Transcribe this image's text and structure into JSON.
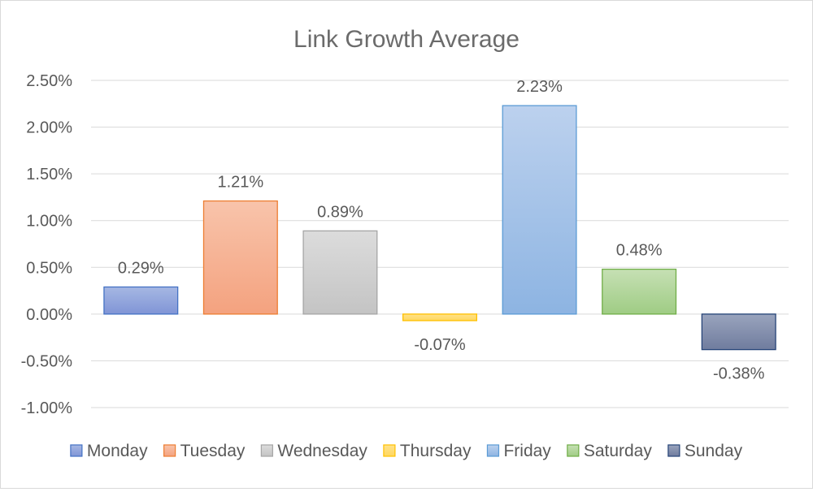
{
  "chart_data": {
    "type": "bar",
    "title": "Link Growth Average",
    "xlabel": "",
    "ylabel": "",
    "ylim": [
      -1.0,
      2.5
    ],
    "yticks": [
      {
        "value": 2.5,
        "label": "2.50%"
      },
      {
        "value": 2.0,
        "label": "2.00%"
      },
      {
        "value": 1.5,
        "label": "1.50%"
      },
      {
        "value": 1.0,
        "label": "1.00%"
      },
      {
        "value": 0.5,
        "label": "0.50%"
      },
      {
        "value": 0.0,
        "label": "0.00%"
      },
      {
        "value": -0.5,
        "label": "-0.50%"
      },
      {
        "value": -1.0,
        "label": "-1.00%"
      }
    ],
    "grid": true,
    "legend_position": "bottom",
    "categories": [
      "Monday",
      "Tuesday",
      "Wednesday",
      "Thursday",
      "Friday",
      "Saturday",
      "Sunday"
    ],
    "values": [
      0.29,
      1.21,
      0.89,
      -0.07,
      2.23,
      0.48,
      -0.38
    ],
    "data_labels": [
      "0.29%",
      "1.21%",
      "0.89%",
      "-0.07%",
      "2.23%",
      "0.48%",
      "-0.38%"
    ],
    "colors": [
      {
        "fill_top": "#a6b7e3",
        "fill_bottom": "#8095d6",
        "stroke": "#4472c4"
      },
      {
        "fill_top": "#f8c4ab",
        "fill_bottom": "#f4a27f",
        "stroke": "#ed7d31"
      },
      {
        "fill_top": "#dcdcdc",
        "fill_bottom": "#c4c4c4",
        "stroke": "#a5a5a5"
      },
      {
        "fill_top": "#ffe28a",
        "fill_bottom": "#ffd75e",
        "stroke": "#ffc000"
      },
      {
        "fill_top": "#bcd1ee",
        "fill_bottom": "#8db4e2",
        "stroke": "#5b9bd5"
      },
      {
        "fill_top": "#c6e0b4",
        "fill_bottom": "#9fcc84",
        "stroke": "#70ad47"
      },
      {
        "fill_top": "#9aa4bd",
        "fill_bottom": "#6f7c9e",
        "stroke": "#264478"
      }
    ]
  }
}
